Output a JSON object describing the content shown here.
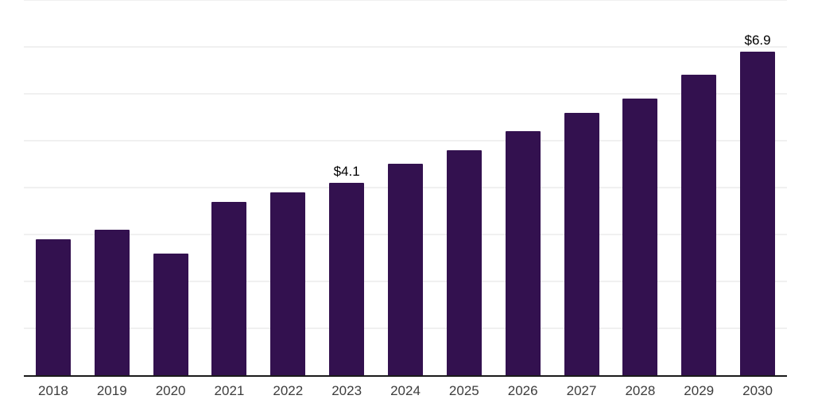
{
  "page": {
    "background": "#ffffff"
  },
  "chart_data": {
    "type": "bar",
    "title": "",
    "xlabel": "",
    "ylabel": "",
    "categories": [
      "2018",
      "2019",
      "2020",
      "2021",
      "2022",
      "2023",
      "2024",
      "2025",
      "2026",
      "2027",
      "2028",
      "2029",
      "2030"
    ],
    "values": [
      2.9,
      3.1,
      2.6,
      3.7,
      3.9,
      4.1,
      4.5,
      4.8,
      5.2,
      5.6,
      5.9,
      6.4,
      6.9
    ],
    "data_labels": [
      {
        "category": "2023",
        "text": "$4.1"
      },
      {
        "category": "2030",
        "text": "$6.9"
      }
    ],
    "ylim": [
      0,
      8
    ],
    "gridline_step": 1,
    "grid": "horizontal",
    "y_tick_labels_visible": false,
    "legend": "none",
    "colors": {
      "bar": "#33114f",
      "axis": "#1a1a1a",
      "gridline": "#f0f0f0",
      "tick_label": "#3d3d3d",
      "data_label": "#000000"
    }
  }
}
